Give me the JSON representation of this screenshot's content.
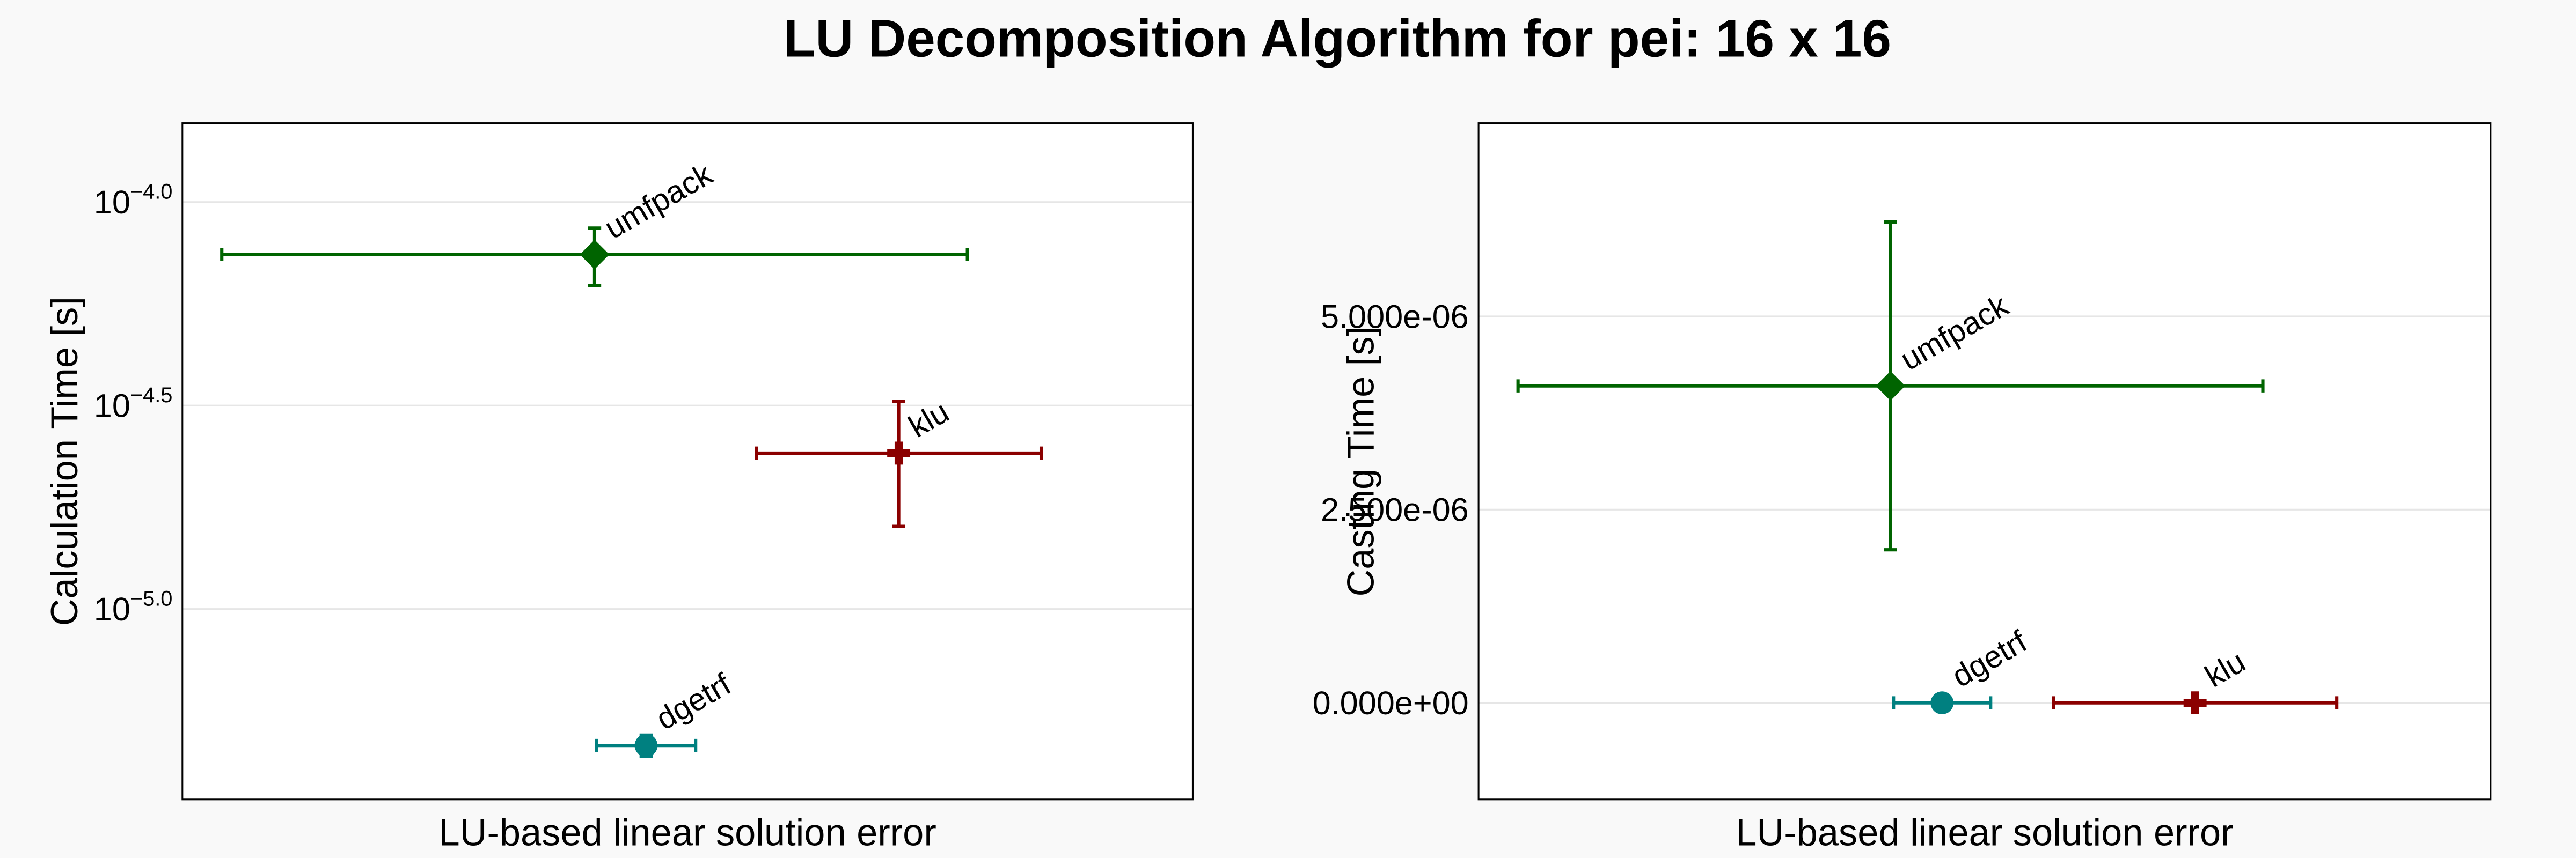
{
  "title": "LU Decomposition Algorithm for pei: 16 x 16",
  "chart_data": [
    {
      "type": "scatter",
      "xlabel": "LU-based linear solution error",
      "ylabel": "Calculation Time [s]",
      "yscale": "log",
      "grid": true,
      "xlim": [
        0,
        1
      ],
      "ylim": [
        3.404e-06,
        0.0001563
      ],
      "yticks": [
        {
          "value": 0.0001,
          "label": "10−4.0"
        },
        {
          "value": 3.1623e-05,
          "label": "10−4.5"
        },
        {
          "value": 1e-05,
          "label": "10−5.0"
        }
      ],
      "series": [
        {
          "name": "umfpack",
          "color": "#006400",
          "marker": "diamond",
          "x": [
            0.408
          ],
          "xerr": [
            0.369
          ],
          "values": [
            7.43e-05
          ],
          "yerr": [
            1.2e-05
          ]
        },
        {
          "name": "klu",
          "color": "#8b0000",
          "marker": "cross",
          "x": [
            0.709
          ],
          "xerr": [
            0.141
          ],
          "values": [
            2.416e-05
          ],
          "yerr": [
            8.2e-06
          ]
        },
        {
          "name": "dgetrf",
          "color": "#008080",
          "marker": "circle",
          "x": [
            0.459
          ],
          "xerr": [
            0.049
          ],
          "values": [
            4.62e-06
          ],
          "yerr": [
            2.8e-07
          ]
        }
      ]
    },
    {
      "type": "scatter",
      "xlabel": "LU-based linear solution error",
      "ylabel": "Casting Time [s]",
      "yscale": "linear",
      "grid": true,
      "xlim": [
        0,
        1
      ],
      "ylim": [
        -1.25e-06,
        7.5e-06
      ],
      "yticks": [
        {
          "value": 0,
          "label": "0.000e+00"
        },
        {
          "value": 2.5e-06,
          "label": "2.500e-06"
        },
        {
          "value": 5e-06,
          "label": "5.000e-06"
        }
      ],
      "series": [
        {
          "name": "umfpack",
          "color": "#006400",
          "marker": "diamond",
          "x": [
            0.407
          ],
          "xerr": [
            0.368
          ],
          "values": [
            4.1e-06
          ],
          "yerr": [
            2.12e-06
          ]
        },
        {
          "name": "klu",
          "color": "#8b0000",
          "marker": "cross",
          "x": [
            0.708
          ],
          "xerr": [
            0.14
          ],
          "values": [
            0
          ],
          "yerr": [
            0
          ]
        },
        {
          "name": "dgetrf",
          "color": "#008080",
          "marker": "circle",
          "x": [
            0.458
          ],
          "xerr": [
            0.048
          ],
          "values": [
            0
          ],
          "yerr": [
            0
          ]
        }
      ]
    }
  ]
}
